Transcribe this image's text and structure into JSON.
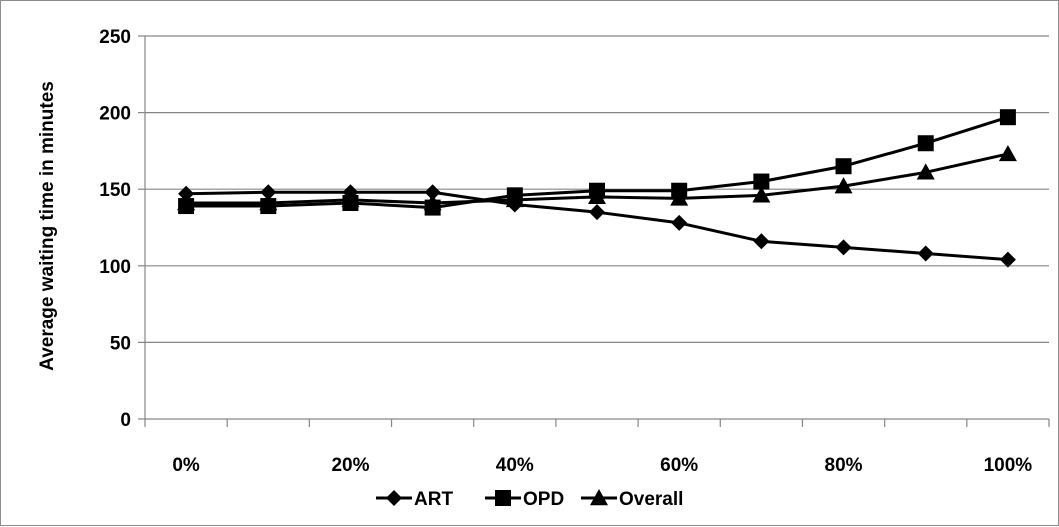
{
  "chart_data": {
    "type": "line",
    "title": "",
    "xlabel": "",
    "ylabel": "Average waiting time in minutes",
    "x": [
      "0%",
      "10%",
      "20%",
      "30%",
      "40%",
      "50%",
      "60%",
      "70%",
      "80%",
      "90%",
      "100%"
    ],
    "x_tick_labels": [
      "0%",
      "20%",
      "40%",
      "60%",
      "80%",
      "100%"
    ],
    "y_ticks": [
      0,
      50,
      100,
      150,
      200,
      250
    ],
    "ylim": [
      0,
      250
    ],
    "grid": "horizontal",
    "legend_position": "bottom",
    "series": [
      {
        "name": "ART",
        "marker": "diamond",
        "values": [
          147,
          148,
          148,
          148,
          140,
          135,
          128,
          116,
          112,
          108,
          104
        ]
      },
      {
        "name": "OPD",
        "marker": "square",
        "values": [
          139,
          139,
          141,
          138,
          146,
          149,
          149,
          155,
          165,
          180,
          197
        ]
      },
      {
        "name": "Overall",
        "marker": "triangle",
        "values": [
          141,
          141,
          143,
          141,
          143,
          145,
          144,
          146,
          152,
          161,
          173
        ]
      }
    ]
  },
  "colors": {
    "series": "#000000",
    "grid": "#868686",
    "axis": "#868686"
  }
}
